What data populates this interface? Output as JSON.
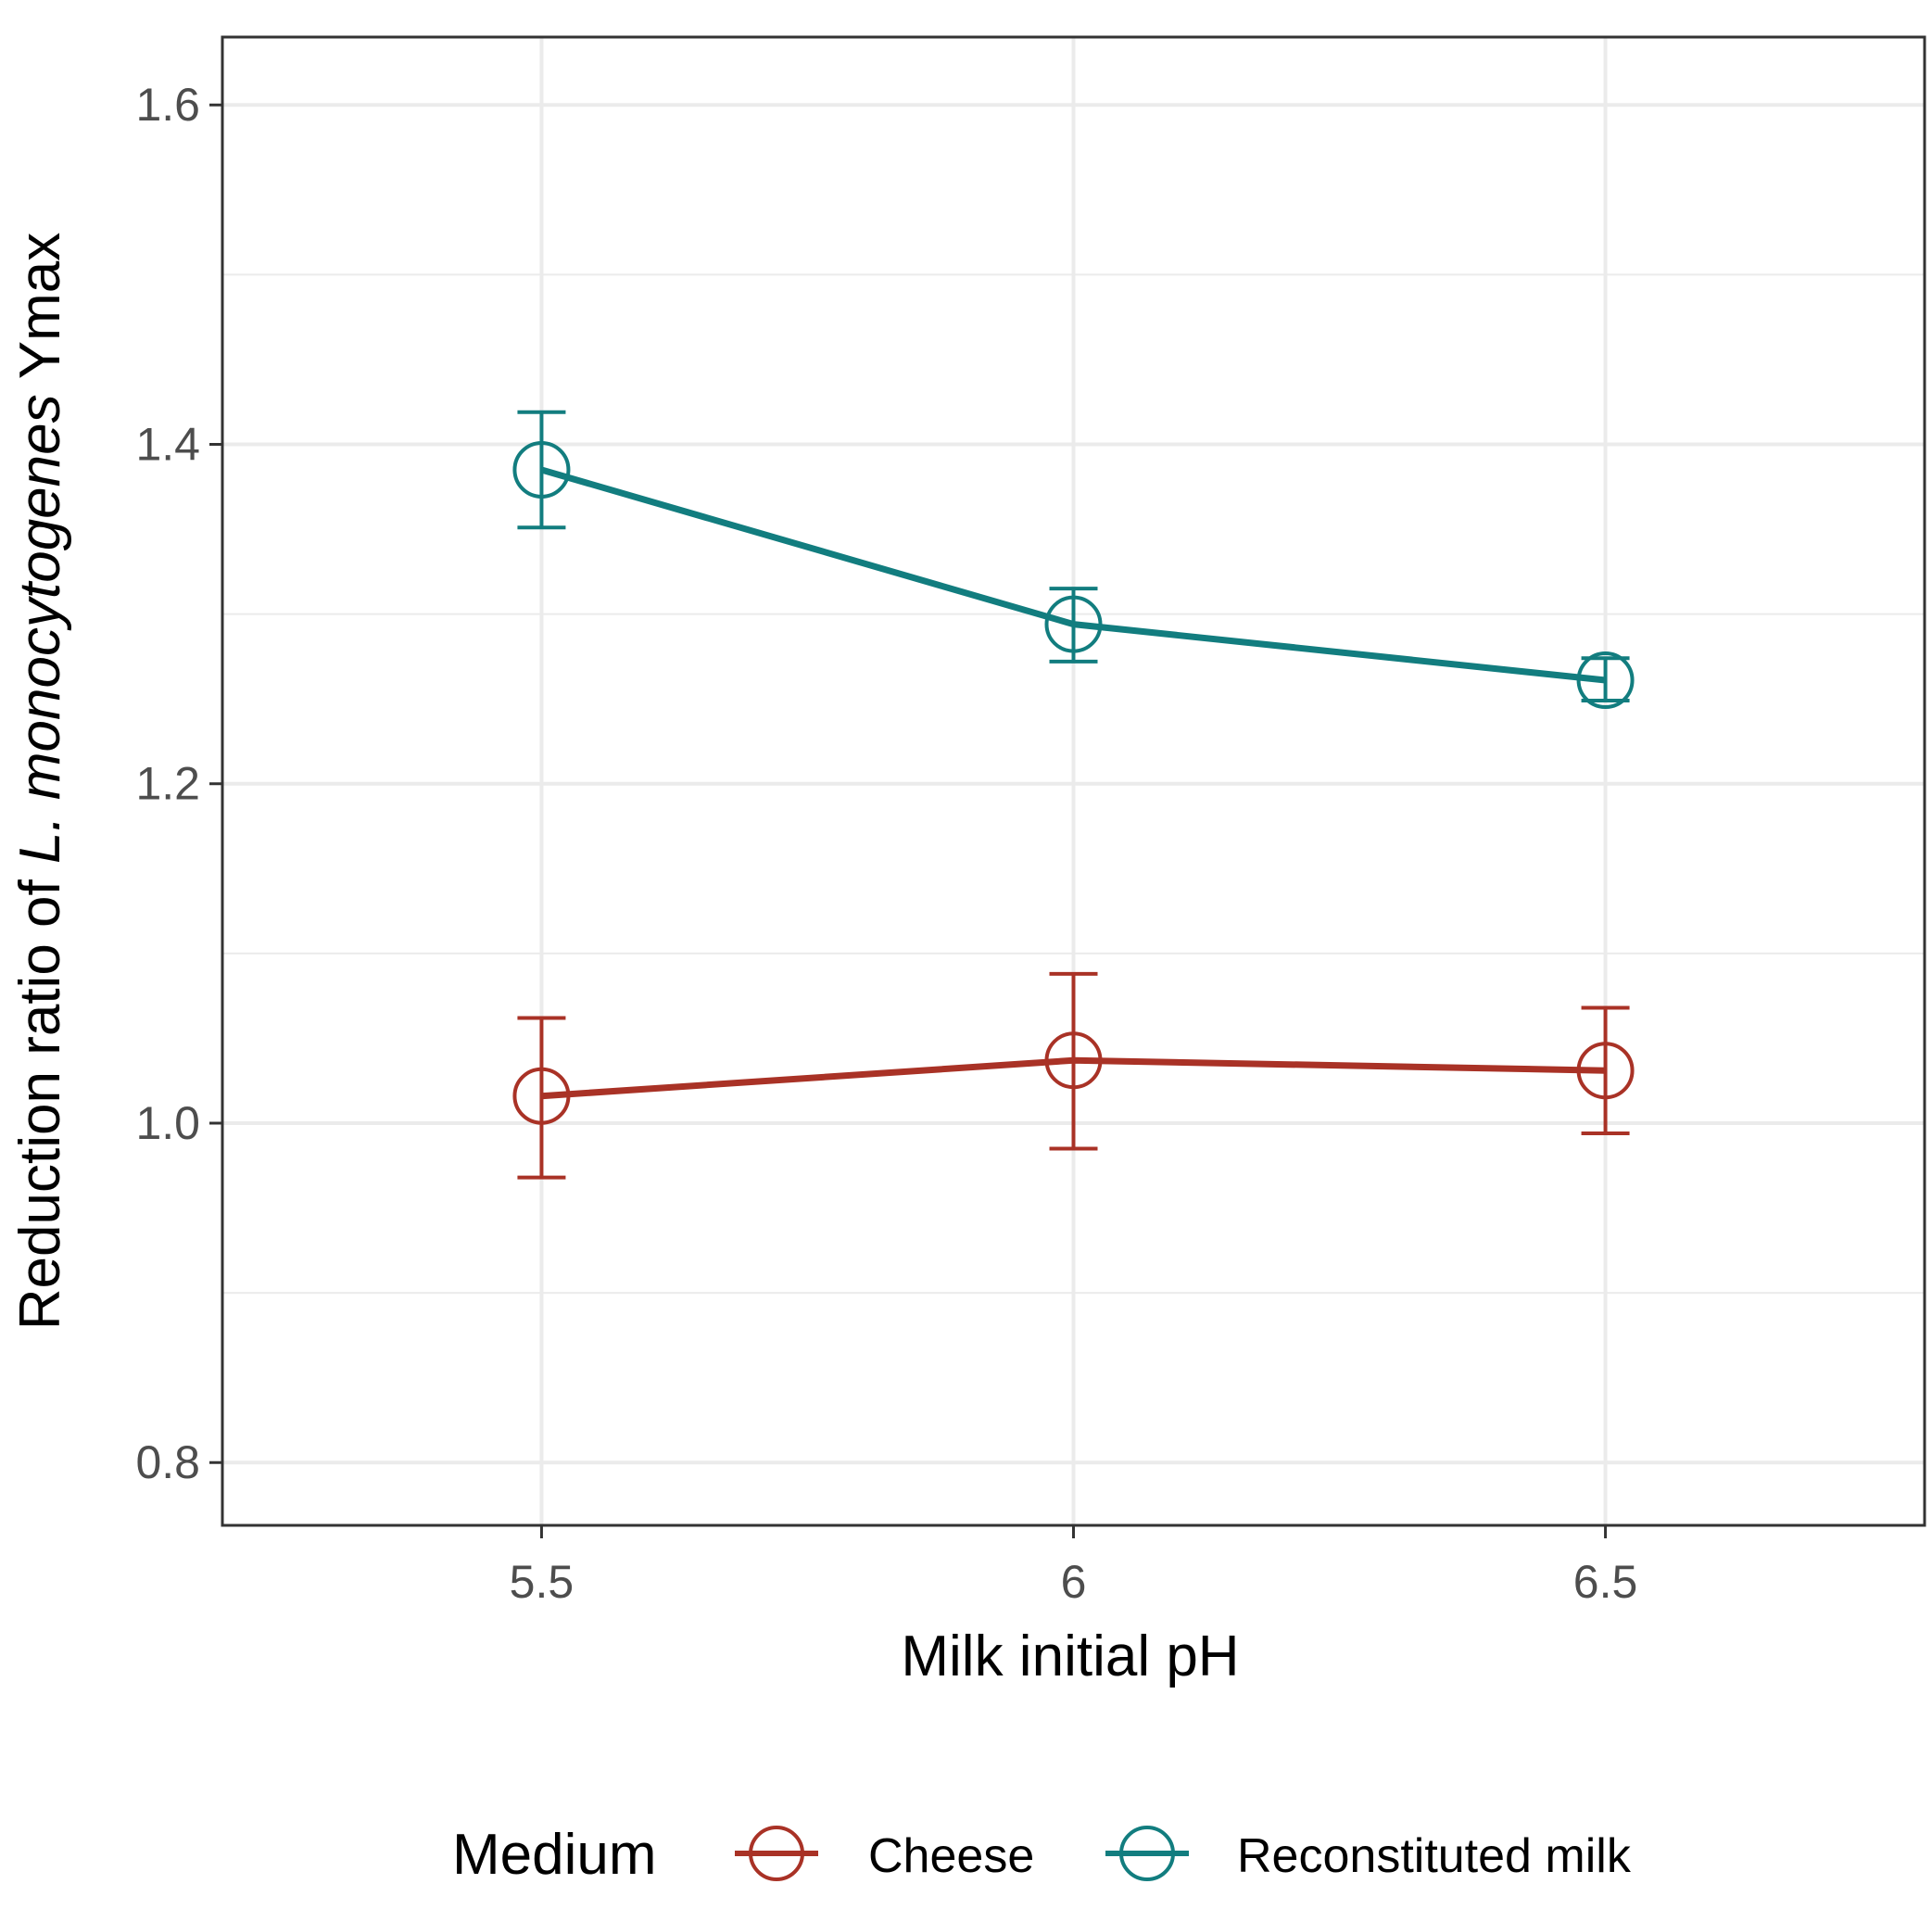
{
  "chart_data": {
    "type": "line",
    "xlabel": "Milk initial pH",
    "ylabel_parts": [
      "Reduction ratio of ",
      "L. monocytogenes",
      " Ymax"
    ],
    "x_ticks": [
      "5.5",
      "6",
      "6.5"
    ],
    "y_ticks": [
      "0.8",
      "1.0",
      "1.2",
      "1.4",
      "1.6"
    ],
    "xlim": [
      5.2,
      6.8
    ],
    "ylim": [
      0.763,
      1.64
    ],
    "grid": true,
    "legend": {
      "title": "Medium",
      "placement": "bottom"
    },
    "series": [
      {
        "name": "Cheese",
        "color": "#a93226",
        "x": [
          5.5,
          6.0,
          6.5
        ],
        "y": [
          1.016,
          1.037,
          1.031
        ],
        "err_low": [
          0.968,
          0.985,
          0.994
        ],
        "err_high": [
          1.062,
          1.088,
          1.068
        ]
      },
      {
        "name": "Reconstituted milk",
        "color": "#127d7f",
        "x": [
          5.5,
          6.0,
          6.5
        ],
        "y": [
          1.385,
          1.294,
          1.261
        ],
        "err_low": [
          1.351,
          1.272,
          1.249
        ],
        "err_high": [
          1.419,
          1.315,
          1.274
        ]
      }
    ]
  }
}
